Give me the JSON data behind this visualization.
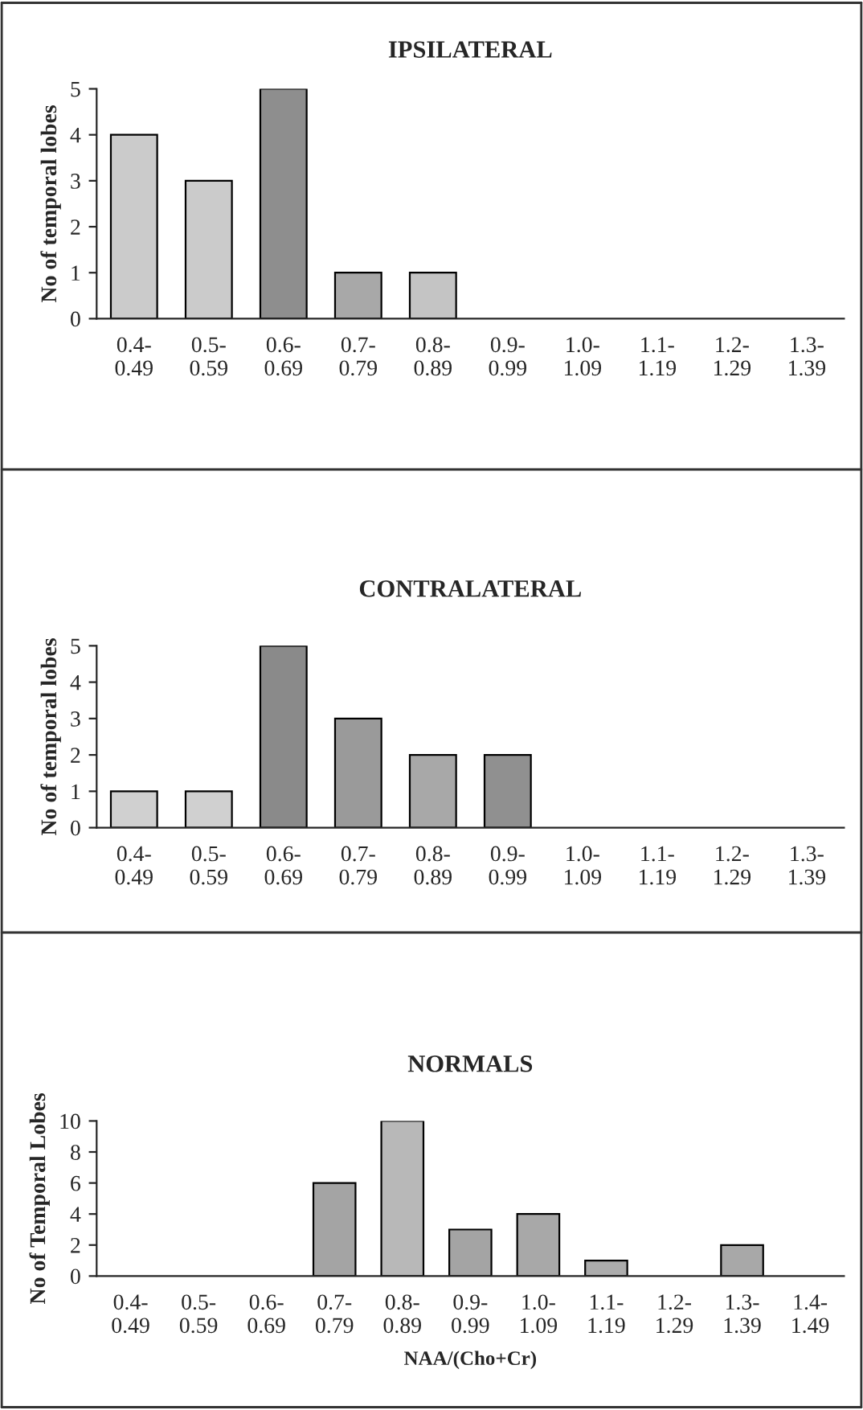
{
  "chart_data": [
    {
      "type": "bar",
      "title": "IPSILATERAL",
      "ylabel": "No of temporal lobes",
      "categories": [
        "0.4-\n0.49",
        "0.5-\n0.59",
        "0.6-\n0.69",
        "0.7-\n0.79",
        "0.8-\n0.89",
        "0.9-\n0.99",
        "1.0-\n1.09",
        "1.1-\n1.19",
        "1.2-\n1.29",
        "1.3-\n1.39"
      ],
      "values": [
        4,
        3,
        5,
        1,
        1,
        null,
        null,
        null,
        null,
        null
      ],
      "colors": [
        "#cbcbcb",
        "#cbcbcb",
        "#8e8e8e",
        "#a8a8a8",
        "#c4c4c4",
        null,
        null,
        null,
        null,
        null
      ],
      "ylim": [
        0,
        5
      ],
      "yticks": [
        0,
        1,
        2,
        3,
        4,
        5
      ],
      "grid": false,
      "legend": false
    },
    {
      "type": "bar",
      "title": "CONTRALATERAL",
      "ylabel": "No of temporal lobes",
      "categories": [
        "0.4-\n0.49",
        "0.5-\n0.59",
        "0.6-\n0.69",
        "0.7-\n0.79",
        "0.8-\n0.89",
        "0.9-\n0.99",
        "1.0-\n1.09",
        "1.1-\n1.19",
        "1.2-\n1.29",
        "1.3-\n1.39"
      ],
      "values": [
        1,
        1,
        5,
        3,
        2,
        2,
        null,
        null,
        null,
        null
      ],
      "colors": [
        "#d0d0d0",
        "#d0d0d0",
        "#8a8a8a",
        "#9a9a9a",
        "#a8a8a8",
        "#909090",
        null,
        null,
        null,
        null
      ],
      "ylim": [
        0,
        5
      ],
      "yticks": [
        0,
        1,
        2,
        3,
        4,
        5
      ],
      "grid": false,
      "legend": false
    },
    {
      "type": "bar",
      "title": "NORMALS",
      "ylabel": "No of Temporal Lobes",
      "xlabel": "NAA/(Cho+Cr)",
      "categories": [
        "0.4-\n0.49",
        "0.5-\n0.59",
        "0.6-\n0.69",
        "0.7-\n0.79",
        "0.8-\n0.89",
        "0.9-\n0.99",
        "1.0-\n1.09",
        "1.1-\n1.19",
        "1.2-\n1.29",
        "1.3-\n1.39",
        "1.4-\n1.49"
      ],
      "values": [
        null,
        null,
        null,
        6,
        10,
        3,
        4,
        1,
        null,
        2,
        null
      ],
      "colors": [
        null,
        null,
        null,
        "#a4a4a4",
        "#b8b8b8",
        "#a4a4a4",
        "#a8a8a8",
        "#acacac",
        null,
        "#a8a8a8",
        null
      ],
      "ylim": [
        0,
        10
      ],
      "yticks": [
        0,
        2,
        4,
        6,
        8,
        10
      ],
      "grid": false,
      "legend": false
    }
  ]
}
